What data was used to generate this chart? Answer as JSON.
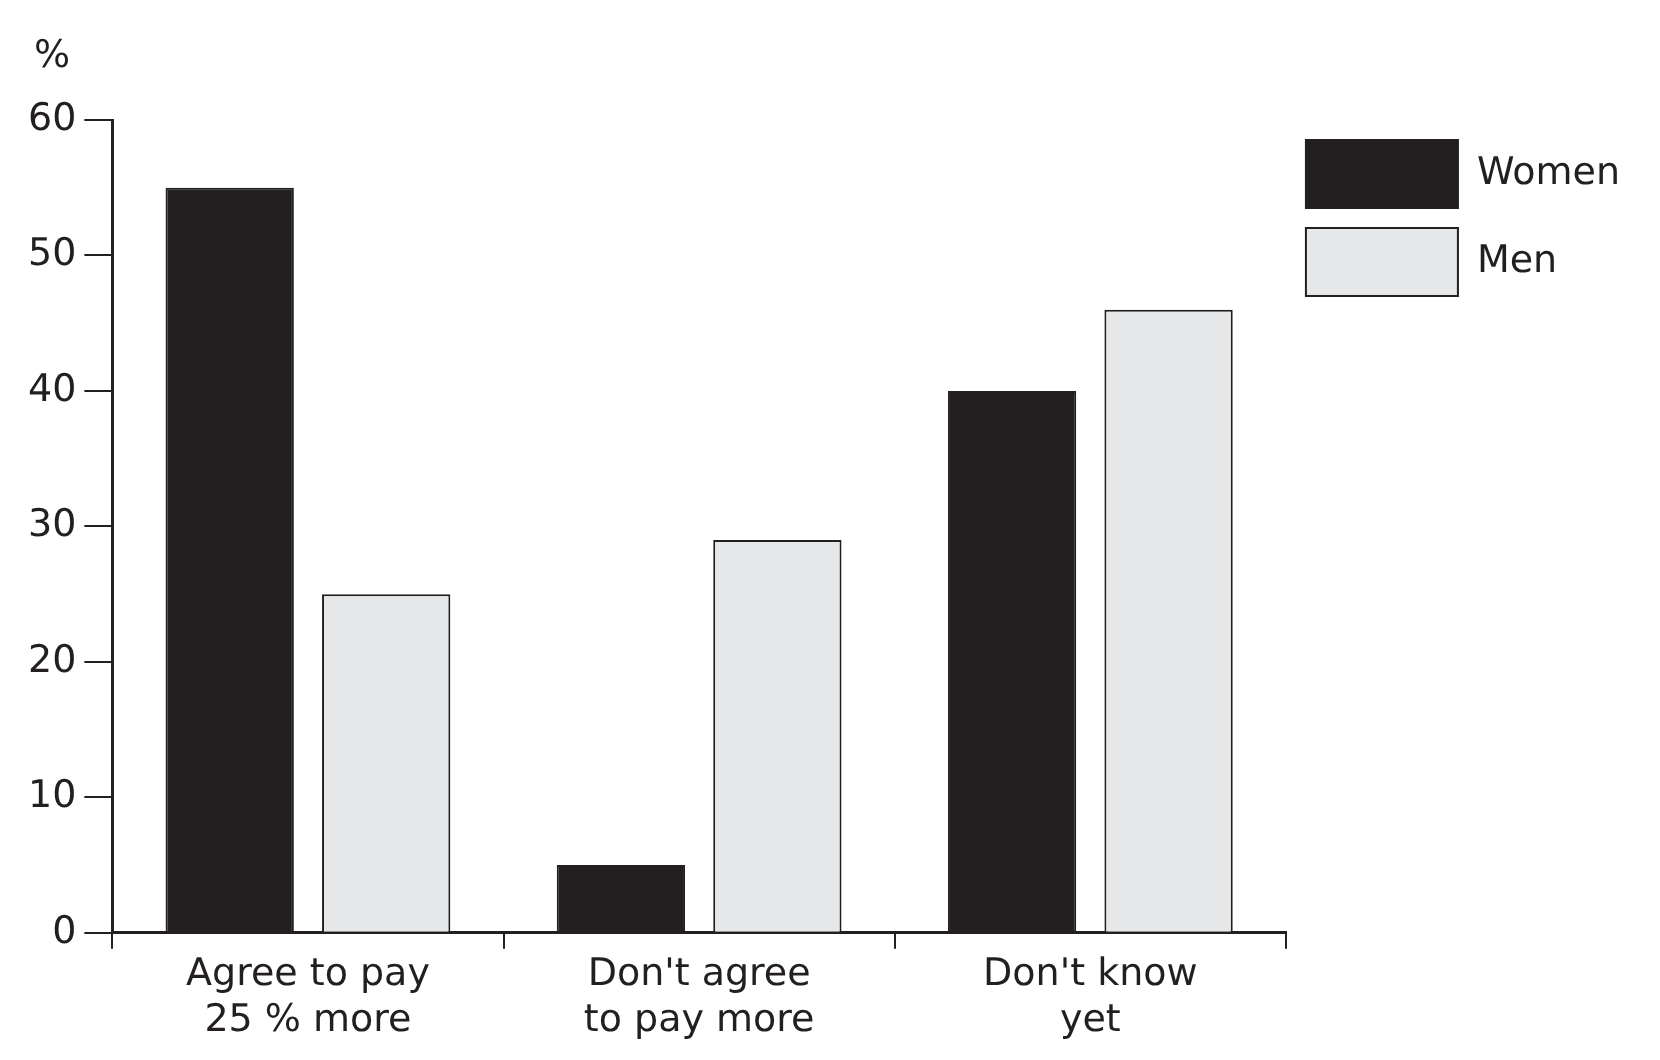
{
  "chart_data": {
    "type": "bar",
    "ylabel": "%",
    "categories": [
      "Agree to pay 25 % more",
      "Don't agree to pay more",
      "Don't know yet"
    ],
    "series": [
      {
        "name": "Women",
        "color": "#231f20",
        "values": [
          55,
          5,
          40
        ]
      },
      {
        "name": "Men",
        "color": "#e6e7e8",
        "values": [
          25,
          29,
          46
        ]
      }
    ],
    "ylim": [
      0,
      60
    ],
    "yticks": [
      0,
      10,
      20,
      30,
      40,
      50,
      60
    ],
    "grid": false,
    "legend": "right"
  }
}
